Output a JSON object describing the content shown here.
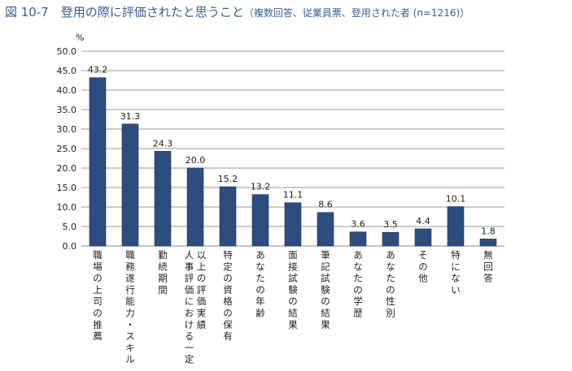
{
  "header": {
    "title": "図 10-7　登用の際に評価されたと思うこと",
    "subtitle": "（複数回答、従業員票、登用された者 (n=1216)）"
  },
  "chart_data": {
    "type": "bar",
    "ylabel": "%",
    "ylim": [
      0,
      50
    ],
    "yticks": [
      "0.0",
      "5.0",
      "10.0",
      "15.0",
      "20.0",
      "25.0",
      "30.0",
      "35.0",
      "40.0",
      "45.0",
      "50.0"
    ],
    "grid": true,
    "bar_color": "#2e4d7f",
    "categories": [
      [
        "職場の上司の推薦"
      ],
      [
        "職務遂行能力・スキル"
      ],
      [
        "勤続期間"
      ],
      [
        "人事評価における一定",
        "以上の評価実績"
      ],
      [
        "特定の資格の保有"
      ],
      [
        "あなたの年齢"
      ],
      [
        "面接試験の結果"
      ],
      [
        "筆記試験の結果"
      ],
      [
        "あなたの学歴"
      ],
      [
        "あなたの性別"
      ],
      [
        "その他"
      ],
      [
        "特にない"
      ],
      [
        "無回答"
      ]
    ],
    "values": [
      43.2,
      31.3,
      24.3,
      20.0,
      15.2,
      13.2,
      11.1,
      8.6,
      3.6,
      3.5,
      4.4,
      10.1,
      1.8
    ],
    "value_labels": [
      "43.2",
      "31.3",
      "24.3",
      "20.0",
      "15.2",
      "13.2",
      "11.1",
      "8.6",
      "3.6",
      "3.5",
      "4.4",
      "10.1",
      "1.8"
    ]
  }
}
